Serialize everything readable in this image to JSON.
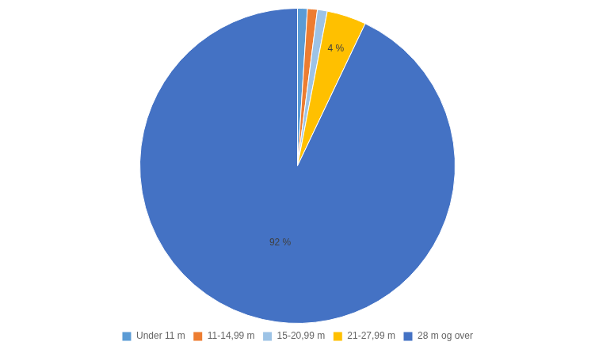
{
  "chart_data": {
    "type": "pie",
    "categories": [
      "Under 11 m",
      "11-14,99 m",
      "15-20,99 m",
      "21-27,99 m",
      "28 m og over"
    ],
    "values": [
      1,
      1,
      1,
      4,
      92
    ],
    "value_labels": [
      null,
      null,
      null,
      "4 %",
      "92 %"
    ],
    "colors": [
      "#5B9BD5",
      "#ED7D31",
      "#9DC3E6",
      "#FFC000",
      "#4472C4"
    ],
    "data_labels": true,
    "legend": "bottom"
  }
}
